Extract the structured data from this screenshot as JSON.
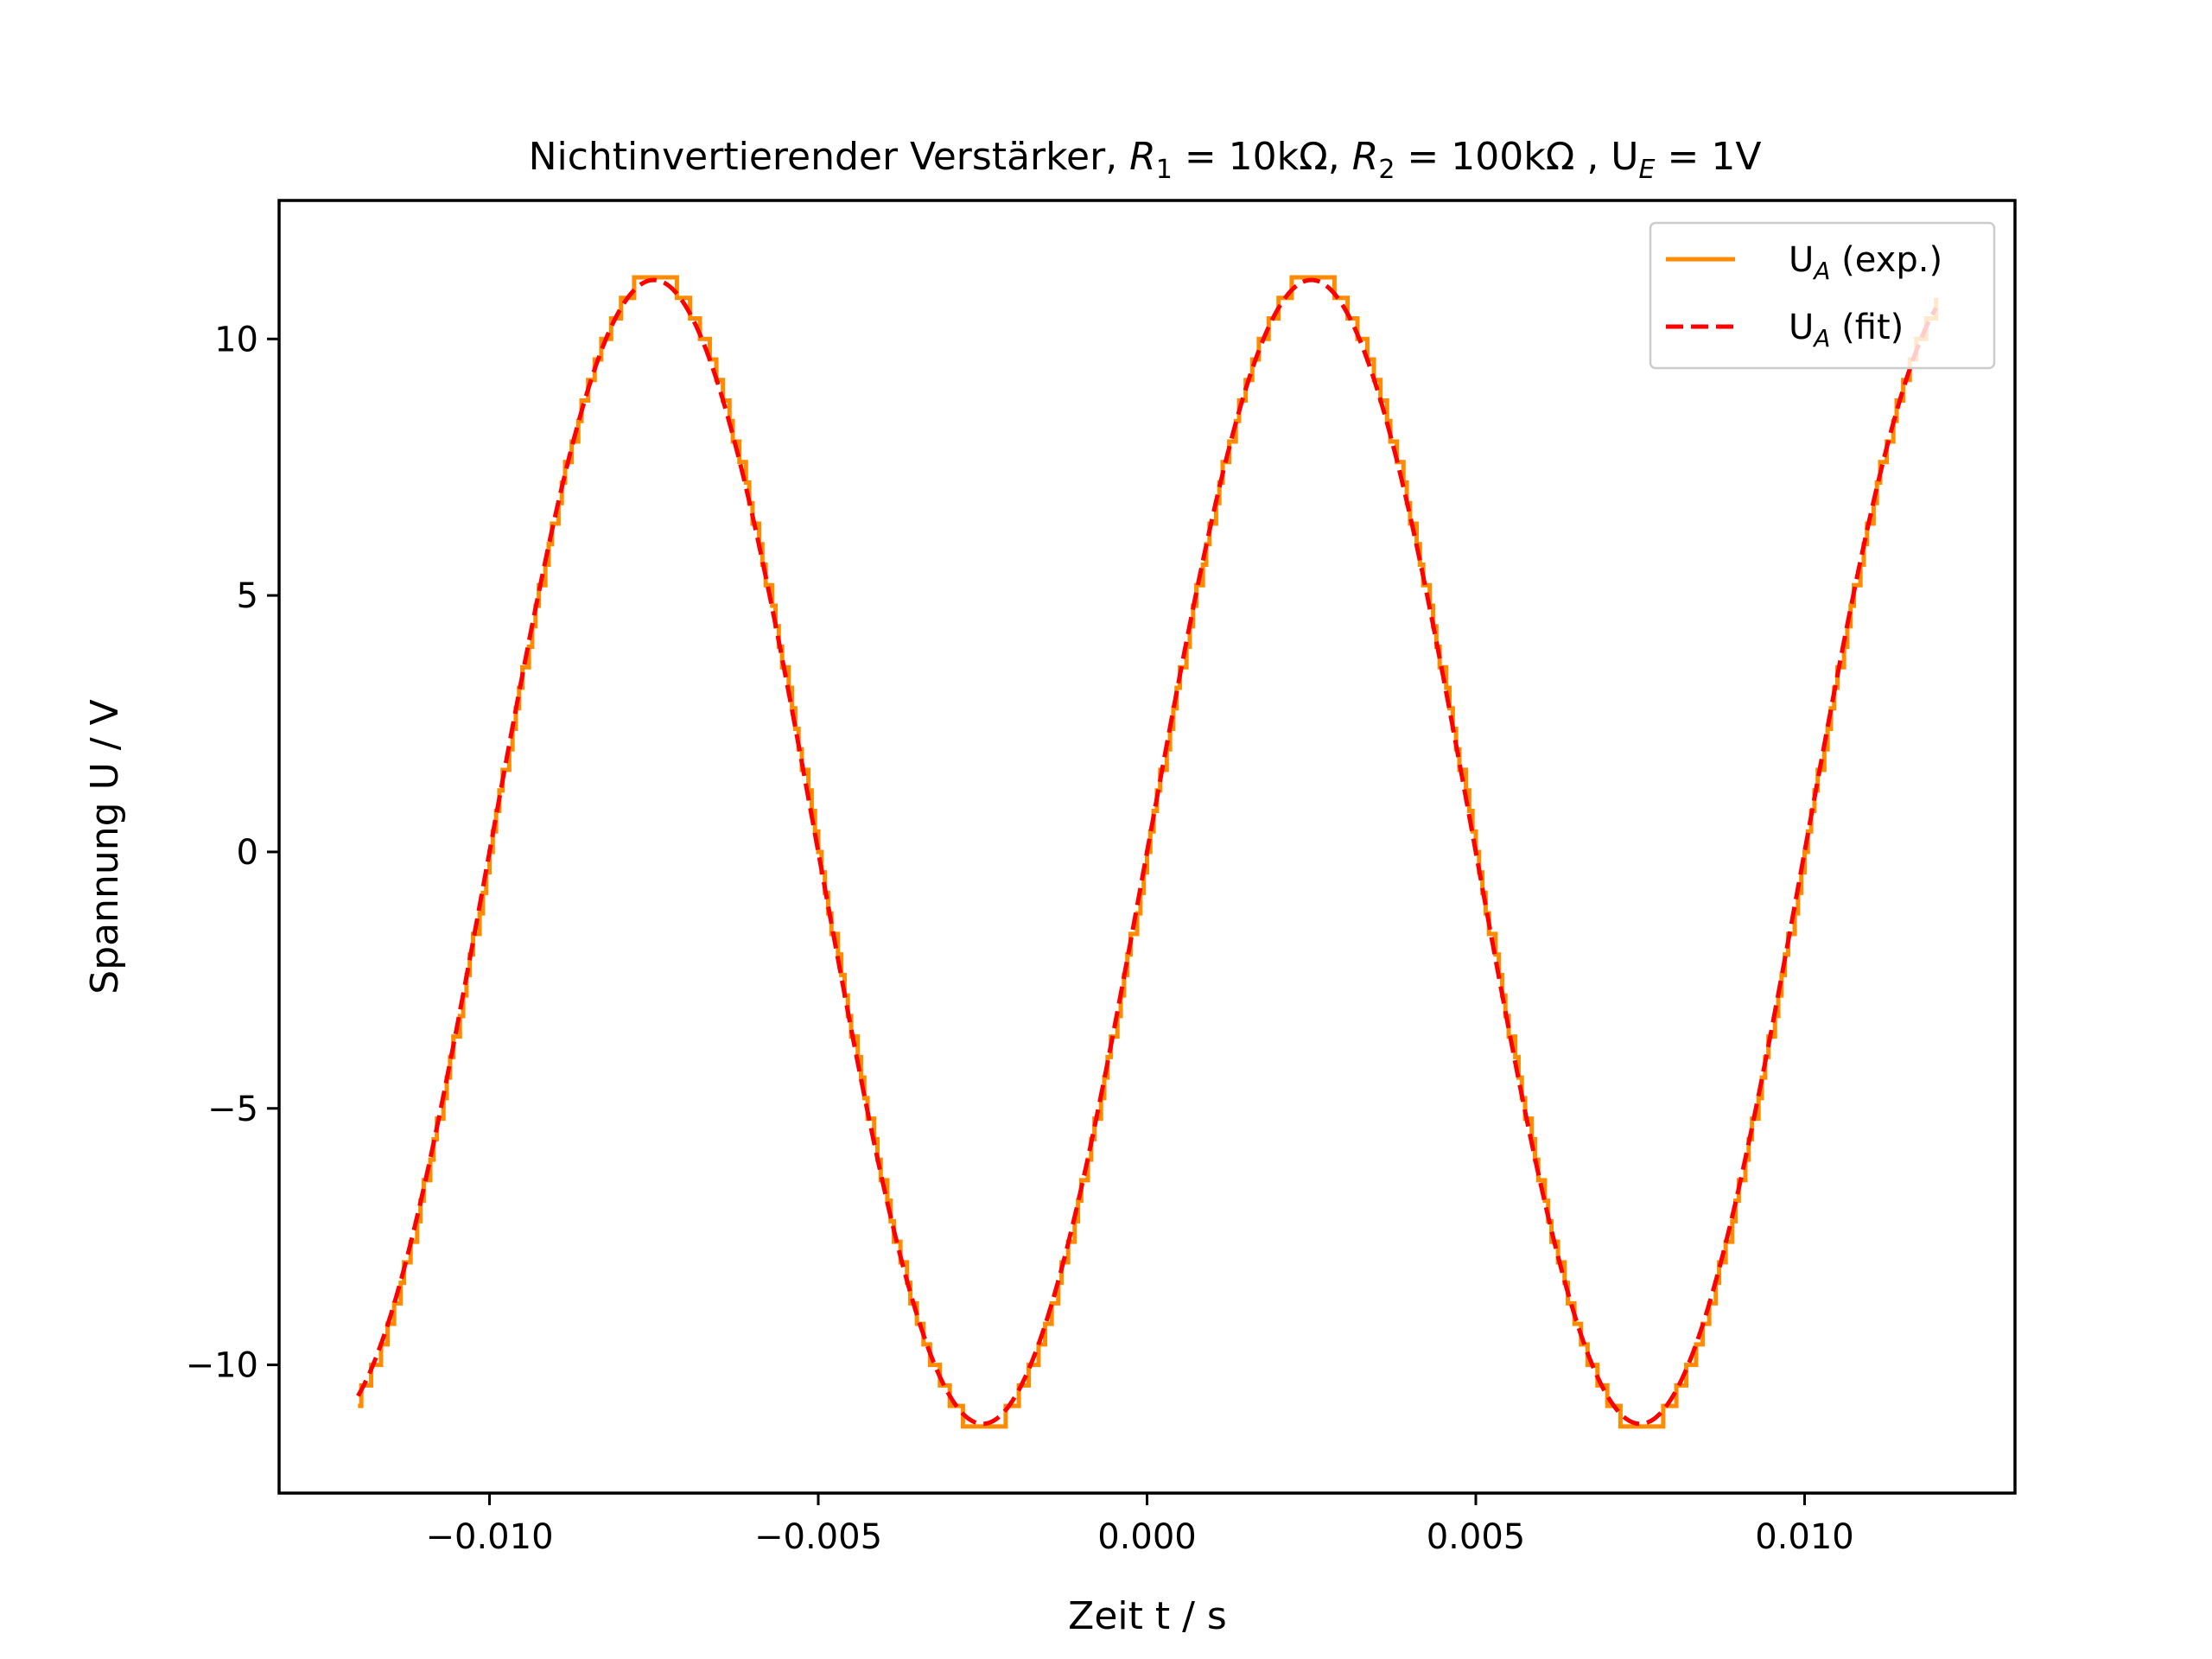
{
  "chart_data": {
    "type": "line",
    "title": {
      "main": "Nichtinvertierender Verstärker, ",
      "r1_sym": "R",
      "r1_sub": "1",
      "r1_val": " = 10kΩ, ",
      "r2_sym": "R",
      "r2_sub": "2",
      "r2_val": " = 100kΩ , U",
      "ue_sub": "E",
      "ue_val": " = 1V"
    },
    "xlabel": "Zeit t / s",
    "ylabel": "Spannung U / V",
    "xlim": [
      -0.0132,
      0.0132
    ],
    "ylim": [
      -12.5,
      12.7
    ],
    "grid": false,
    "legend_position": "top-right",
    "x_ticks": [
      {
        "value": -0.01,
        "label": "−0.010"
      },
      {
        "value": -0.005,
        "label": "−0.005"
      },
      {
        "value": 0.0,
        "label": "0.000"
      },
      {
        "value": 0.005,
        "label": "0.005"
      },
      {
        "value": 0.01,
        "label": "0.010"
      }
    ],
    "y_ticks": [
      {
        "value": 10,
        "label": "10"
      },
      {
        "value": 5,
        "label": "5"
      },
      {
        "value": 0,
        "label": "0"
      },
      {
        "value": -5,
        "label": "−5"
      },
      {
        "value": -10,
        "label": "−10"
      }
    ],
    "x_range": [
      -0.012,
      0.012
    ],
    "series": [
      {
        "name_main": "U",
        "name_sub": "A",
        "name_suffix": " (exp.)",
        "color": "#ff8c00",
        "style": "solid",
        "kind": "measured-step",
        "amplitude": 11.2,
        "frequency": 100,
        "phase_offset": 0.0025,
        "quantization_step": 0.4
      },
      {
        "name_main": "U",
        "name_sub": "A",
        "name_suffix": " (fit)",
        "color": "#ff0000",
        "style": "dashed",
        "kind": "fit",
        "amplitude": 11.15,
        "frequency": 100,
        "phase_offset": 0.0025
      }
    ]
  }
}
